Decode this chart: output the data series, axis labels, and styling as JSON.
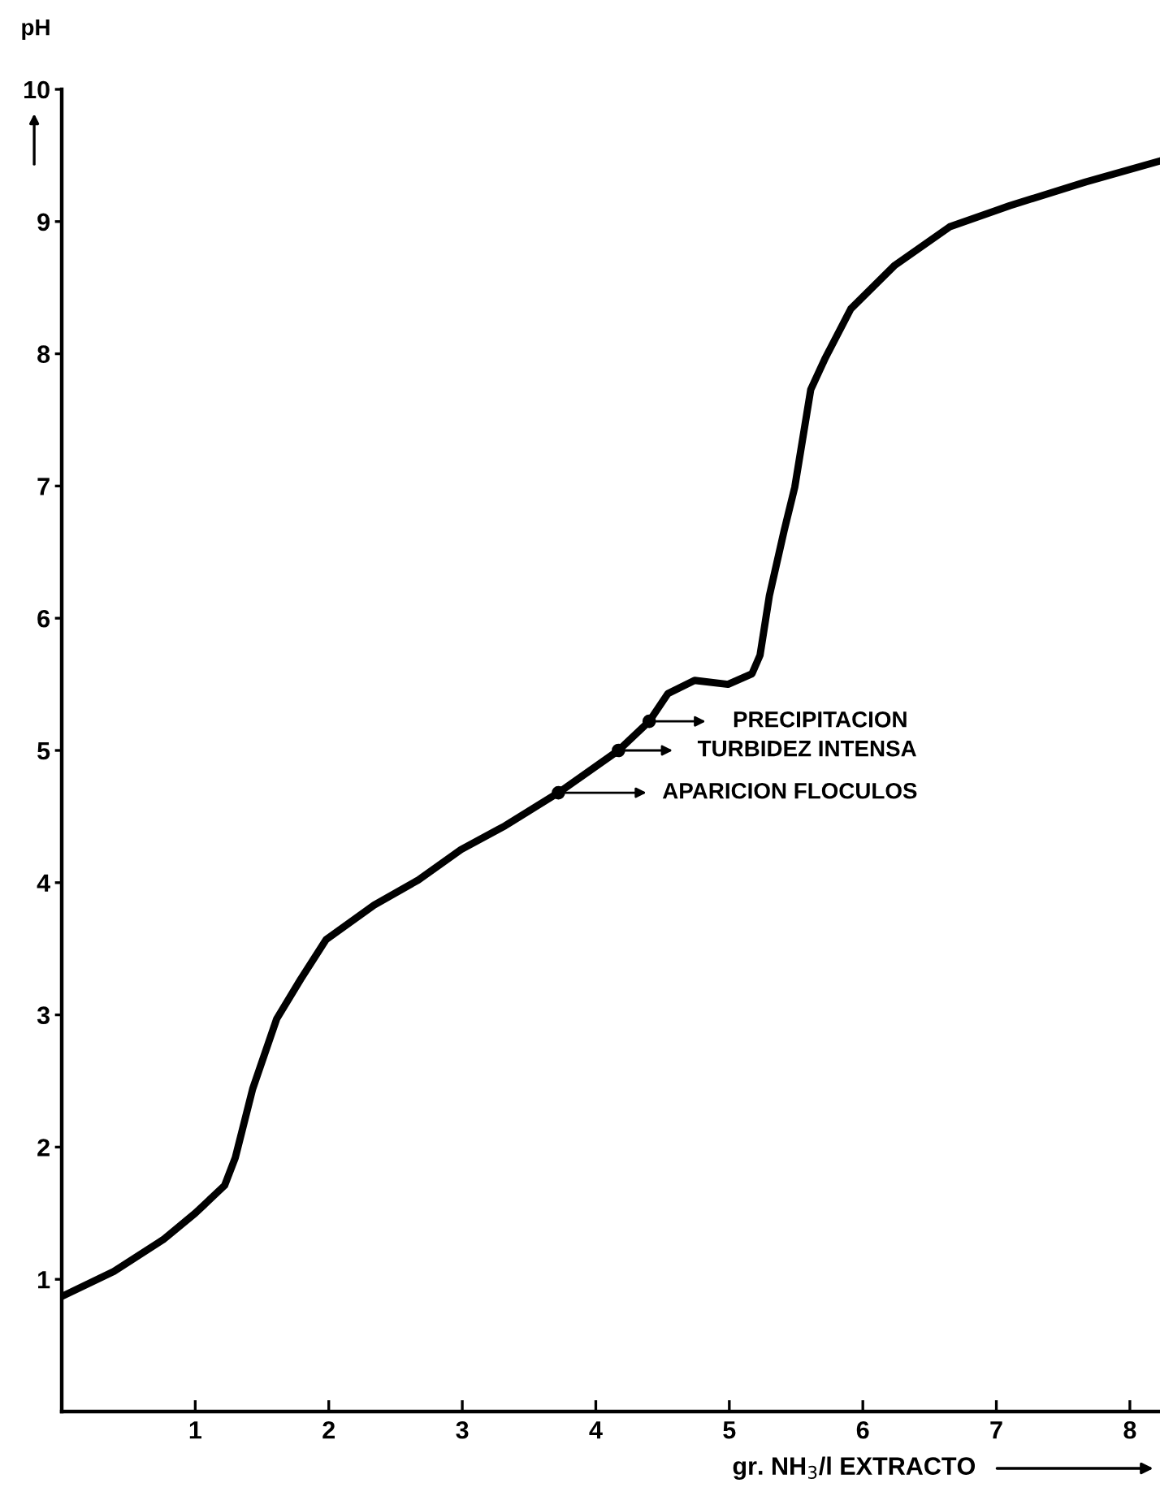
{
  "chart_data": {
    "type": "line",
    "ylabel": "pH",
    "xlabel": "gr. NH$_{3}$/l EXTRACTO",
    "x": [
      0,
      0.39,
      0.76,
      1.0,
      1.22,
      1.3,
      1.43,
      1.61,
      1.79,
      1.98,
      2.34,
      2.67,
      2.99,
      3.32,
      3.72,
      4.17,
      4.4,
      4.54,
      4.74,
      4.99,
      5.17,
      5.23,
      5.3,
      5.41,
      5.49,
      5.61,
      5.72,
      5.91,
      6.24,
      6.65,
      7.1,
      7.67,
      8.23
    ],
    "series": [
      {
        "color": "#000000",
        "values": [
          0.87,
          1.06,
          1.3,
          1.5,
          1.71,
          1.92,
          2.44,
          2.97,
          3.27,
          3.57,
          3.83,
          4.02,
          4.25,
          4.43,
          4.68,
          5.0,
          5.22,
          5.43,
          5.53,
          5.5,
          5.58,
          5.72,
          6.17,
          6.66,
          6.99,
          7.73,
          7.97,
          8.34,
          8.67,
          8.96,
          9.12,
          9.3,
          9.46
        ]
      },
      {
        "type": "scatter",
        "marker": "circle",
        "color": "#000000",
        "x": [
          4.4,
          4.17,
          3.72
        ],
        "values": [
          5.22,
          5.0,
          4.68
        ]
      }
    ],
    "annotations": [
      "PRECIPITACION",
      "TURBIDEZ INTENSA",
      "APARICION FLOCULOS"
    ],
    "xlim": [
      0,
      8.25
    ],
    "ylim": [
      0,
      10
    ],
    "xticks": [
      1,
      2,
      3,
      4,
      5,
      6,
      7,
      8
    ],
    "yticks": [
      1,
      2,
      3,
      4,
      5,
      6,
      7,
      8,
      9,
      10
    ],
    "grid": false,
    "marker": "none",
    "line_style": "solid"
  }
}
